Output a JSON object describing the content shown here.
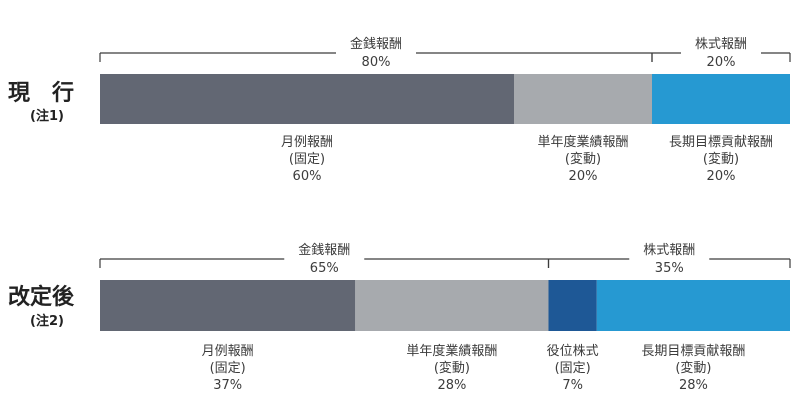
{
  "colors": {
    "monthly": "#626773",
    "annual": "#a7aaae",
    "longterm": "#2699d2",
    "officer_stock": "#1e5896",
    "bracket": "#3c3c3c"
  },
  "chart_data": {
    "type": "bar",
    "orientation": "horizontal-stacked",
    "unit": "%",
    "rows": [
      {
        "title": "現　行",
        "note": "(注1)",
        "groups": [
          {
            "label": "金銭報酬",
            "value_label": "80%",
            "value": 80
          },
          {
            "label": "株式報酬",
            "value_label": "20%",
            "value": 20
          }
        ],
        "segments": [
          {
            "lines": [
              "月例報酬",
              "(固定)"
            ],
            "value": 60,
            "value_label": "60%",
            "color": "#626773"
          },
          {
            "lines": [
              "単年度業績報酬",
              "(変動)"
            ],
            "value": 20,
            "value_label": "20%",
            "color": "#a7aaae"
          },
          {
            "lines": [
              "長期目標貢献報酬",
              "(変動)"
            ],
            "value": 20,
            "value_label": "20%",
            "color": "#2699d2"
          }
        ]
      },
      {
        "title": "改定後",
        "note": "(注2)",
        "groups": [
          {
            "label": "金銭報酬",
            "value_label": "65%",
            "value": 65
          },
          {
            "label": "株式報酬",
            "value_label": "35%",
            "value": 35
          }
        ],
        "segments": [
          {
            "lines": [
              "月例報酬",
              "(固定)"
            ],
            "value": 37,
            "value_label": "37%",
            "color": "#626773"
          },
          {
            "lines": [
              "単年度業績報酬",
              "(変動)"
            ],
            "value": 28,
            "value_label": "28%",
            "color": "#a7aaae"
          },
          {
            "lines": [
              "役位株式",
              "(固定)"
            ],
            "value": 7,
            "value_label": "7%",
            "color": "#1e5896"
          },
          {
            "lines": [
              "長期目標貢献報酬",
              "(変動)"
            ],
            "value": 28,
            "value_label": "28%",
            "color": "#2699d2"
          }
        ]
      }
    ]
  }
}
